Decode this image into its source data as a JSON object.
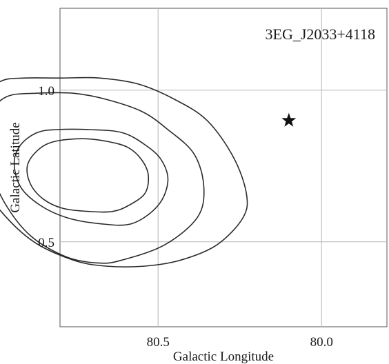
{
  "chart_data": {
    "type": "contour",
    "title": "3EG_J2033+4118",
    "xlabel": "Galactic Longitude",
    "ylabel": "Galactic Latitude",
    "x_axis_reversed": true,
    "xlim": [
      80.8,
      79.8
    ],
    "ylim": [
      0.22,
      1.27
    ],
    "xticks": [
      80.5,
      80.0
    ],
    "xtick_labels": [
      "80.5",
      "80.0"
    ],
    "yticks": [
      1.0,
      0.5
    ],
    "ytick_labels": [
      "1.0",
      "0.5"
    ],
    "grid": true,
    "contours": [
      {
        "level": "inner",
        "points": [
          [
            80.59,
            0.62
          ],
          [
            80.54,
            0.66
          ],
          [
            80.53,
            0.72
          ],
          [
            80.55,
            0.77
          ],
          [
            80.59,
            0.81
          ],
          [
            80.65,
            0.83
          ],
          [
            80.73,
            0.84
          ],
          [
            80.82,
            0.83
          ],
          [
            80.87,
            0.8
          ],
          [
            80.9,
            0.75
          ],
          [
            80.89,
            0.69
          ],
          [
            80.85,
            0.64
          ],
          [
            80.79,
            0.61
          ],
          [
            80.71,
            0.6
          ],
          [
            80.64,
            0.6
          ]
        ]
      },
      {
        "level": "middle",
        "points": [
          [
            80.58,
            0.56
          ],
          [
            80.5,
            0.62
          ],
          [
            80.47,
            0.7
          ],
          [
            80.49,
            0.77
          ],
          [
            80.54,
            0.82
          ],
          [
            80.61,
            0.86
          ],
          [
            80.71,
            0.87
          ],
          [
            80.81,
            0.87
          ],
          [
            80.87,
            0.86
          ],
          [
            80.92,
            0.82
          ],
          [
            80.94,
            0.76
          ],
          [
            80.92,
            0.68
          ],
          [
            80.86,
            0.62
          ],
          [
            80.78,
            0.58
          ],
          [
            80.68,
            0.56
          ]
        ]
      },
      {
        "level": "outer",
        "points": [
          [
            80.61,
            0.44
          ],
          [
            80.48,
            0.49
          ],
          [
            80.38,
            0.58
          ],
          [
            80.36,
            0.68
          ],
          [
            80.39,
            0.79
          ],
          [
            80.47,
            0.87
          ],
          [
            80.55,
            0.93
          ],
          [
            80.66,
            0.97
          ],
          [
            80.76,
            0.99
          ],
          [
            80.87,
            0.99
          ],
          [
            80.96,
            0.98
          ],
          [
            81.01,
            0.93
          ],
          [
            81.03,
            0.85
          ],
          [
            81.02,
            0.76
          ],
          [
            80.97,
            0.63
          ],
          [
            80.89,
            0.52
          ],
          [
            80.78,
            0.45
          ],
          [
            80.68,
            0.43
          ]
        ]
      },
      {
        "level": "outermost",
        "points": [
          [
            80.54,
            0.42
          ],
          [
            80.43,
            0.44
          ],
          [
            80.32,
            0.49
          ],
          [
            80.24,
            0.58
          ],
          [
            80.23,
            0.66
          ],
          [
            80.27,
            0.78
          ],
          [
            80.35,
            0.9
          ],
          [
            80.45,
            0.97
          ],
          [
            80.56,
            1.02
          ],
          [
            80.68,
            1.04
          ],
          [
            80.8,
            1.04
          ],
          [
            80.91,
            1.04
          ],
          [
            80.98,
            1.03
          ],
          [
            81.03,
            0.98
          ],
          [
            81.07,
            0.9
          ],
          [
            81.06,
            0.79
          ],
          [
            81.04,
            0.7
          ],
          [
            80.98,
            0.6
          ],
          [
            80.88,
            0.5
          ],
          [
            80.76,
            0.44
          ],
          [
            80.66,
            0.42
          ]
        ]
      }
    ],
    "marker": {
      "symbol": "star",
      "x": 80.1,
      "y": 0.9
    }
  }
}
